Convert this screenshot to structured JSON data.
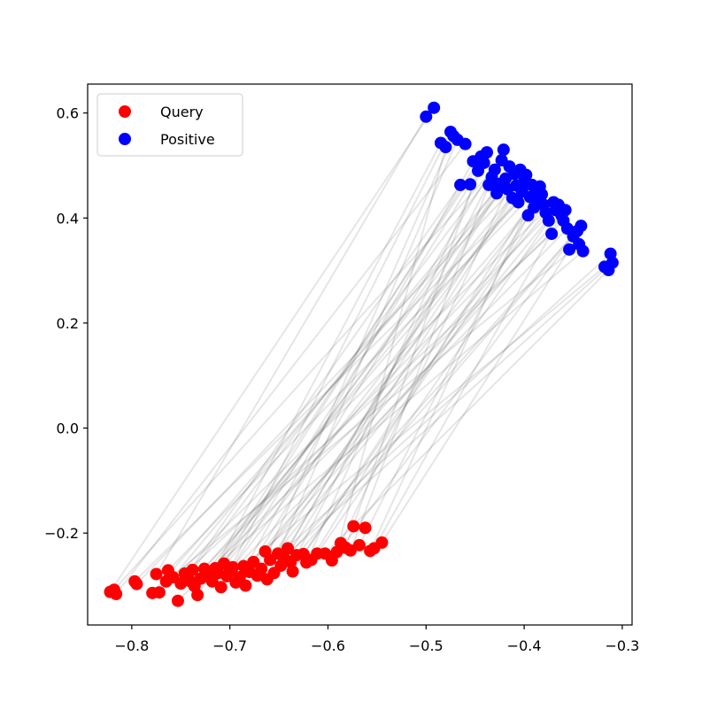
{
  "chart_data": {
    "type": "scatter",
    "title": "",
    "xlabel": "",
    "ylabel": "",
    "xlim": [
      -0.845,
      -0.29
    ],
    "ylim": [
      -0.375,
      0.655
    ],
    "x_ticks": [
      -0.8,
      -0.7,
      -0.6,
      -0.5,
      -0.4,
      -0.3
    ],
    "y_ticks": [
      -0.2,
      0.0,
      0.2,
      0.4,
      0.6
    ],
    "x_tick_labels": [
      "−0.8",
      "−0.7",
      "−0.6",
      "−0.5",
      "−0.4",
      "−0.3"
    ],
    "y_tick_labels": [
      "−0.2",
      "0.0",
      "0.2",
      "0.4",
      "0.6"
    ],
    "grid": false,
    "legend_position": "top-left",
    "connector_color": "#000000",
    "series": [
      {
        "name": "Query",
        "color": "#ff0000",
        "points": [
          [
            -0.822,
            -0.312
          ],
          [
            -0.818,
            -0.308
          ],
          [
            -0.816,
            -0.316
          ],
          [
            -0.797,
            -0.292
          ],
          [
            -0.795,
            -0.297
          ],
          [
            -0.779,
            -0.314
          ],
          [
            -0.775,
            -0.278
          ],
          [
            -0.772,
            -0.313
          ],
          [
            -0.765,
            -0.292
          ],
          [
            -0.763,
            -0.271
          ],
          [
            -0.758,
            -0.284
          ],
          [
            -0.753,
            -0.329
          ],
          [
            -0.75,
            -0.296
          ],
          [
            -0.746,
            -0.277
          ],
          [
            -0.74,
            -0.292
          ],
          [
            -0.738,
            -0.27
          ],
          [
            -0.736,
            -0.301
          ],
          [
            -0.733,
            -0.318
          ],
          [
            -0.73,
            -0.287
          ],
          [
            -0.726,
            -0.268
          ],
          [
            -0.722,
            -0.283
          ],
          [
            -0.718,
            -0.292
          ],
          [
            -0.715,
            -0.267
          ],
          [
            -0.712,
            -0.276
          ],
          [
            -0.709,
            -0.303
          ],
          [
            -0.706,
            -0.258
          ],
          [
            -0.703,
            -0.282
          ],
          [
            -0.7,
            -0.273
          ],
          [
            -0.697,
            -0.265
          ],
          [
            -0.694,
            -0.294
          ],
          [
            -0.69,
            -0.284
          ],
          [
            -0.686,
            -0.263
          ],
          [
            -0.684,
            -0.3
          ],
          [
            -0.68,
            -0.274
          ],
          [
            -0.676,
            -0.255
          ],
          [
            -0.672,
            -0.281
          ],
          [
            -0.668,
            -0.268
          ],
          [
            -0.664,
            -0.235
          ],
          [
            -0.662,
            -0.288
          ],
          [
            -0.659,
            -0.251
          ],
          [
            -0.655,
            -0.276
          ],
          [
            -0.651,
            -0.239
          ],
          [
            -0.648,
            -0.262
          ],
          [
            -0.645,
            -0.246
          ],
          [
            -0.641,
            -0.229
          ],
          [
            -0.638,
            -0.255
          ],
          [
            -0.636,
            -0.273
          ],
          [
            -0.632,
            -0.242
          ],
          [
            -0.625,
            -0.24
          ],
          [
            -0.622,
            -0.256
          ],
          [
            -0.617,
            -0.251
          ],
          [
            -0.611,
            -0.239
          ],
          [
            -0.603,
            -0.239
          ],
          [
            -0.596,
            -0.252
          ],
          [
            -0.591,
            -0.236
          ],
          [
            -0.587,
            -0.219
          ],
          [
            -0.582,
            -0.228
          ],
          [
            -0.577,
            -0.233
          ],
          [
            -0.574,
            -0.187
          ],
          [
            -0.568,
            -0.223
          ],
          [
            -0.562,
            -0.19
          ],
          [
            -0.557,
            -0.234
          ],
          [
            -0.553,
            -0.229
          ],
          [
            -0.545,
            -0.218
          ]
        ]
      },
      {
        "name": "Positive",
        "color": "#0000ff",
        "points": [
          [
            -0.5,
            0.593
          ],
          [
            -0.492,
            0.61
          ],
          [
            -0.485,
            0.543
          ],
          [
            -0.48,
            0.535
          ],
          [
            -0.475,
            0.564
          ],
          [
            -0.472,
            0.556
          ],
          [
            -0.468,
            0.549
          ],
          [
            -0.465,
            0.463
          ],
          [
            -0.46,
            0.541
          ],
          [
            -0.455,
            0.464
          ],
          [
            -0.452,
            0.508
          ],
          [
            -0.447,
            0.49
          ],
          [
            -0.444,
            0.517
          ],
          [
            -0.441,
            0.505
          ],
          [
            -0.438,
            0.525
          ],
          [
            -0.436,
            0.463
          ],
          [
            -0.433,
            0.478
          ],
          [
            -0.43,
            0.492
          ],
          [
            -0.428,
            0.447
          ],
          [
            -0.425,
            0.465
          ],
          [
            -0.423,
            0.51
          ],
          [
            -0.421,
            0.53
          ],
          [
            -0.419,
            0.475
          ],
          [
            -0.417,
            0.455
          ],
          [
            -0.415,
            0.498
          ],
          [
            -0.412,
            0.438
          ],
          [
            -0.41,
            0.484
          ],
          [
            -0.408,
            0.462
          ],
          [
            -0.406,
            0.43
          ],
          [
            -0.404,
            0.492
          ],
          [
            -0.402,
            0.45
          ],
          [
            -0.4,
            0.47
          ],
          [
            -0.398,
            0.482
          ],
          [
            -0.396,
            0.405
          ],
          [
            -0.394,
            0.44
          ],
          [
            -0.392,
            0.463
          ],
          [
            -0.39,
            0.42
          ],
          [
            -0.388,
            0.452
          ],
          [
            -0.386,
            0.436
          ],
          [
            -0.384,
            0.46
          ],
          [
            -0.382,
            0.445
          ],
          [
            -0.38,
            0.425
          ],
          [
            -0.378,
            0.41
          ],
          [
            -0.375,
            0.395
          ],
          [
            -0.372,
            0.37
          ],
          [
            -0.37,
            0.43
          ],
          [
            -0.368,
            0.415
          ],
          [
            -0.365,
            0.425
          ],
          [
            -0.362,
            0.405
          ],
          [
            -0.36,
            0.395
          ],
          [
            -0.358,
            0.415
          ],
          [
            -0.356,
            0.38
          ],
          [
            -0.354,
            0.34
          ],
          [
            -0.35,
            0.365
          ],
          [
            -0.346,
            0.375
          ],
          [
            -0.344,
            0.35
          ],
          [
            -0.342,
            0.385
          ],
          [
            -0.34,
            0.337
          ],
          [
            -0.318,
            0.307
          ],
          [
            -0.314,
            0.301
          ],
          [
            -0.312,
            0.332
          ],
          [
            -0.31,
            0.315
          ]
        ]
      }
    ]
  }
}
